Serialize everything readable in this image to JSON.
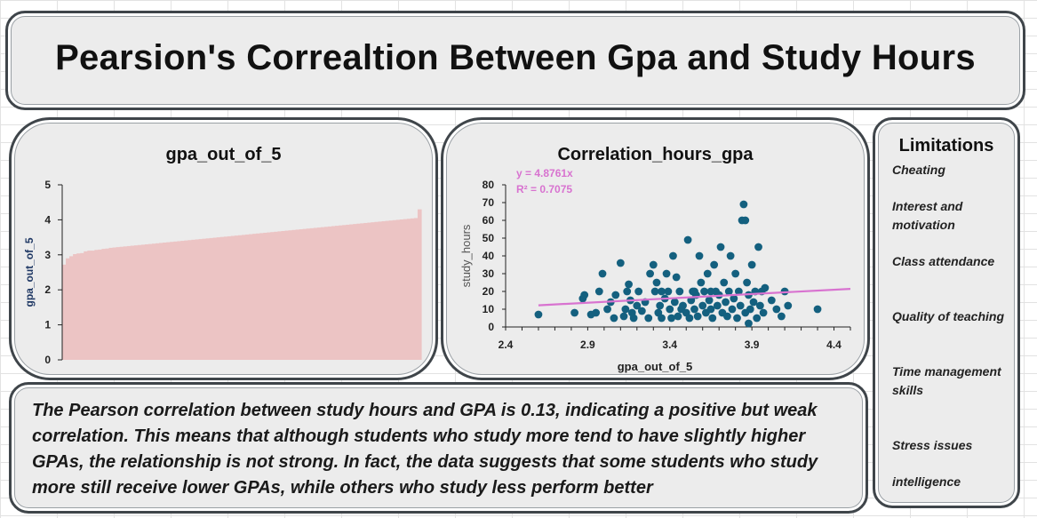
{
  "page": {
    "title": "Pearsion's Correaltion Between Gpa and Study Hours"
  },
  "limitations": {
    "title": "Limitations",
    "items": [
      "Cheating",
      "Interest and motivation",
      "Class attendance",
      "Quality of teaching",
      "Time management skills",
      "Stress issues",
      " intelligence"
    ]
  },
  "summary": {
    "text": "The Pearson correlation between study hours and GPA is 0.13, indicating a positive but weak correlation. This means that although students who study more tend to have slightly higher GPAs, the relationship is not strong. In fact, the data suggests that some students who study more still receive lower GPAs, while others who study less perform better"
  },
  "colors": {
    "bar_fill": "#ecc4c4",
    "point_fill": "#14607f",
    "trend_line": "#d873d0",
    "panel_bg": "#ececec",
    "panel_border": "#3f454a"
  },
  "chart_data": [
    {
      "type": "bar",
      "title": "gpa_out_of_5",
      "xlabel": "",
      "ylabel": "gpa_out_of_5",
      "ylim": [
        0,
        5
      ],
      "yticks": [
        0,
        1,
        2,
        3,
        4,
        5
      ],
      "grid": false,
      "sorted": "ascending",
      "values": [
        2.72,
        2.9,
        2.96,
        3.02,
        3.04,
        3.05,
        3.1,
        3.12,
        3.12,
        3.14,
        3.15,
        3.17,
        3.18,
        3.2,
        3.21,
        3.22,
        3.23,
        3.24,
        3.25,
        3.26,
        3.27,
        3.28,
        3.29,
        3.3,
        3.31,
        3.32,
        3.33,
        3.34,
        3.35,
        3.36,
        3.37,
        3.38,
        3.39,
        3.4,
        3.41,
        3.42,
        3.43,
        3.44,
        3.45,
        3.46,
        3.47,
        3.48,
        3.49,
        3.5,
        3.51,
        3.52,
        3.53,
        3.54,
        3.55,
        3.56,
        3.57,
        3.58,
        3.59,
        3.6,
        3.61,
        3.62,
        3.63,
        3.64,
        3.65,
        3.66,
        3.67,
        3.68,
        3.69,
        3.7,
        3.71,
        3.72,
        3.73,
        3.74,
        3.75,
        3.76,
        3.77,
        3.78,
        3.79,
        3.8,
        3.81,
        3.82,
        3.83,
        3.84,
        3.85,
        3.86,
        3.87,
        3.88,
        3.89,
        3.9,
        3.91,
        3.92,
        3.93,
        3.94,
        3.95,
        3.96,
        3.97,
        3.98,
        3.99,
        4.0,
        4.01,
        4.02,
        4.03,
        4.04,
        4.05,
        4.3
      ]
    },
    {
      "type": "scatter",
      "title": "Correlation_hours_gpa",
      "xlabel": "gpa_out_of_5",
      "ylabel": "study_hours",
      "xlim": [
        2.4,
        4.5
      ],
      "ylim": [
        0,
        80
      ],
      "xticks": [
        2.4,
        2.9,
        3.4,
        3.9,
        4.4
      ],
      "yticks": [
        0,
        10,
        20,
        30,
        40,
        50,
        60,
        70,
        80
      ],
      "grid": false,
      "trendline": {
        "type": "linear",
        "equation": "y = 4.8761x",
        "r_squared": "R² = 0.7075",
        "slope": 4.8761
      },
      "points": [
        [
          2.6,
          7
        ],
        [
          2.82,
          8
        ],
        [
          2.87,
          16
        ],
        [
          2.88,
          18
        ],
        [
          2.92,
          7
        ],
        [
          2.95,
          8
        ],
        [
          2.97,
          20
        ],
        [
          2.99,
          30
        ],
        [
          3.02,
          10
        ],
        [
          3.04,
          14
        ],
        [
          3.06,
          5
        ],
        [
          3.07,
          18
        ],
        [
          3.1,
          36
        ],
        [
          3.12,
          6
        ],
        [
          3.13,
          10
        ],
        [
          3.14,
          20
        ],
        [
          3.15,
          24
        ],
        [
          3.16,
          15
        ],
        [
          3.17,
          8
        ],
        [
          3.18,
          5
        ],
        [
          3.2,
          12
        ],
        [
          3.21,
          20
        ],
        [
          3.23,
          9
        ],
        [
          3.25,
          14
        ],
        [
          3.27,
          5
        ],
        [
          3.28,
          30
        ],
        [
          3.3,
          35
        ],
        [
          3.31,
          20
        ],
        [
          3.32,
          25
        ],
        [
          3.33,
          8
        ],
        [
          3.34,
          12
        ],
        [
          3.35,
          5
        ],
        [
          3.37,
          16
        ],
        [
          3.38,
          30
        ],
        [
          3.39,
          20
        ],
        [
          3.4,
          10
        ],
        [
          3.41,
          5
        ],
        [
          3.42,
          40
        ],
        [
          3.43,
          14
        ],
        [
          3.44,
          28
        ],
        [
          3.45,
          6
        ],
        [
          3.46,
          20
        ],
        [
          3.47,
          10
        ],
        [
          3.48,
          12
        ],
        [
          3.5,
          8
        ],
        [
          3.51,
          49
        ],
        [
          3.52,
          5
        ],
        [
          3.53,
          15
        ],
        [
          3.54,
          20
        ],
        [
          3.55,
          10
        ],
        [
          3.56,
          18
        ],
        [
          3.57,
          6
        ],
        [
          3.58,
          40
        ],
        [
          3.59,
          25
        ],
        [
          3.6,
          12
        ],
        [
          3.61,
          20
        ],
        [
          3.62,
          8
        ],
        [
          3.63,
          30
        ],
        [
          3.64,
          15
        ],
        [
          3.65,
          10
        ],
        [
          3.66,
          5
        ],
        [
          3.67,
          35
        ],
        [
          3.68,
          20
        ],
        [
          3.69,
          12
        ],
        [
          3.7,
          18
        ],
        [
          3.71,
          45
        ],
        [
          3.72,
          8
        ],
        [
          3.73,
          25
        ],
        [
          3.74,
          14
        ],
        [
          3.75,
          6
        ],
        [
          3.76,
          20
        ],
        [
          3.77,
          40
        ],
        [
          3.78,
          10
        ],
        [
          3.79,
          16
        ],
        [
          3.8,
          30
        ],
        [
          3.81,
          5
        ],
        [
          3.82,
          20
        ],
        [
          3.83,
          12
        ],
        [
          3.84,
          60
        ],
        [
          3.85,
          69
        ],
        [
          3.86,
          8
        ],
        [
          3.87,
          25
        ],
        [
          3.88,
          18
        ],
        [
          3.89,
          10
        ],
        [
          3.9,
          35
        ],
        [
          3.91,
          14
        ],
        [
          3.92,
          20
        ],
        [
          3.93,
          5
        ],
        [
          3.94,
          45
        ],
        [
          3.95,
          12
        ],
        [
          3.96,
          20
        ],
        [
          3.97,
          8
        ],
        [
          3.98,
          22
        ],
        [
          4.02,
          15
        ],
        [
          4.05,
          10
        ],
        [
          4.08,
          6
        ],
        [
          4.1,
          20
        ],
        [
          4.12,
          12
        ],
        [
          4.3,
          10
        ],
        [
          3.86,
          60
        ],
        [
          3.88,
          2
        ],
        [
          3.55,
          20
        ],
        [
          3.35,
          20
        ],
        [
          3.65,
          20
        ]
      ]
    }
  ]
}
